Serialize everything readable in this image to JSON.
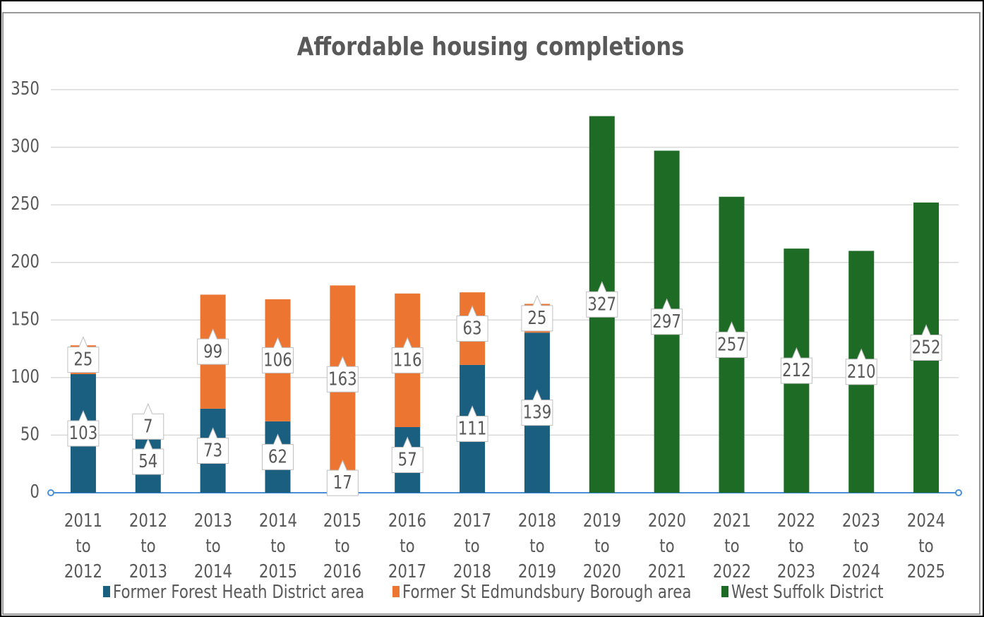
{
  "chart_data": {
    "type": "stacked-bar",
    "title": "Affordable housing completions",
    "categories": [
      "2011 to 2012",
      "2012 to 2013",
      "2013 to 2014",
      "2014 to 2015",
      "2015 to 2016",
      "2016 to 2017",
      "2017 to 2018",
      "2018 to 2019",
      "2019 to 2020",
      "2020 to 2021",
      "2021 to 2022",
      "2022 to 2023",
      "2023 to 2024",
      "2024 to 2025"
    ],
    "series": [
      {
        "name": "Former Forest Heath District area",
        "color": "#1a5e80",
        "values": [
          103,
          54,
          73,
          62,
          17,
          57,
          111,
          139,
          null,
          null,
          null,
          null,
          null,
          null
        ]
      },
      {
        "name": "Former St Edmundsbury Borough area",
        "color": "#ec7532",
        "values": [
          25,
          7,
          99,
          106,
          163,
          116,
          63,
          25,
          null,
          null,
          null,
          null,
          null,
          null
        ]
      },
      {
        "name": "West Suffolk District",
        "color": "#1e6b25",
        "values": [
          null,
          null,
          null,
          null,
          null,
          null,
          null,
          null,
          327,
          297,
          257,
          212,
          210,
          252
        ]
      }
    ],
    "ylim": [
      0,
      350
    ],
    "yticks": [
      0,
      50,
      100,
      150,
      200,
      250,
      300,
      350
    ],
    "grid": true,
    "legend": "bottom"
  }
}
